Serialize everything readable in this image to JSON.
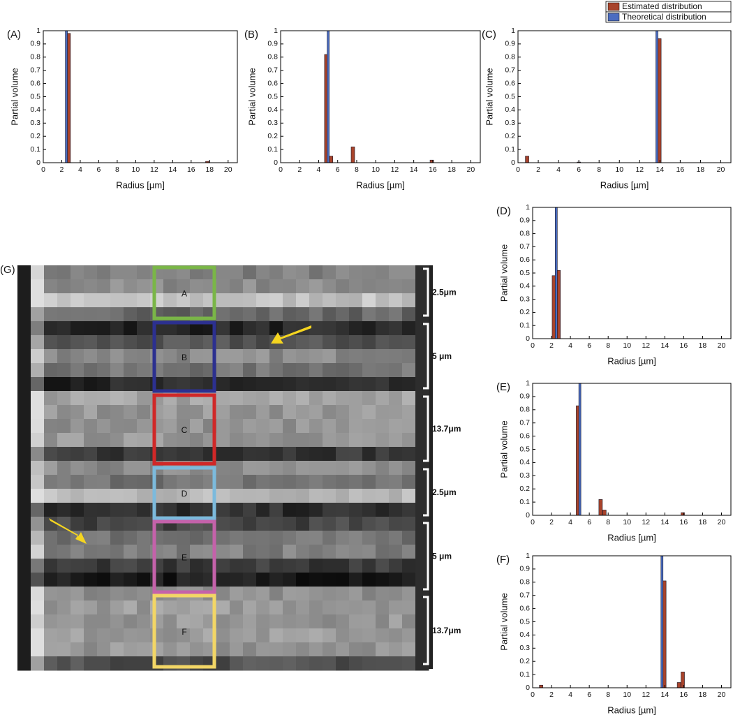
{
  "legend": [
    {
      "name": "Estimated distribution",
      "color": "#a8432b"
    },
    {
      "name": "Theoretical distribution",
      "color": "#4a6cc0"
    }
  ],
  "chart_data": [
    {
      "type": "bar",
      "label": "(A)",
      "xlabel": "Radius [µm]",
      "ylabel": "Partial volume",
      "xlim": [
        0,
        21
      ],
      "ylim": [
        0,
        1
      ],
      "xticks": [
        0,
        2,
        4,
        6,
        8,
        10,
        12,
        14,
        16,
        18,
        20
      ],
      "yticks": [
        0,
        0.1,
        0.2,
        0.3,
        0.4,
        0.5,
        0.6,
        0.7,
        0.8,
        0.9,
        1
      ],
      "series": [
        {
          "x": [
            2.75,
            17.75
          ],
          "values": [
            0.98,
            0.01
          ]
        },
        {
          "x": [
            2.5
          ],
          "values": [
            1
          ]
        }
      ]
    },
    {
      "type": "bar",
      "label": "(B)",
      "xlabel": "Radius [µm]",
      "ylabel": "Partial volume",
      "xlim": [
        0,
        21
      ],
      "ylim": [
        0,
        1
      ],
      "xticks": [
        0,
        2,
        4,
        6,
        8,
        10,
        12,
        14,
        16,
        18,
        20
      ],
      "yticks": [
        0,
        0.1,
        0.2,
        0.3,
        0.4,
        0.5,
        0.6,
        0.7,
        0.8,
        0.9,
        1
      ],
      "series": [
        {
          "x": [
            4.8,
            5.3,
            7.6,
            15.9
          ],
          "values": [
            0.82,
            0.05,
            0.12,
            0.02
          ]
        },
        {
          "x": [
            5
          ],
          "values": [
            1
          ]
        }
      ]
    },
    {
      "type": "bar",
      "label": "(C)",
      "xlabel": "Radius [µm]",
      "ylabel": "Partial volume",
      "xlim": [
        0,
        21
      ],
      "ylim": [
        0,
        1
      ],
      "xticks": [
        0,
        2,
        4,
        6,
        8,
        10,
        12,
        14,
        16,
        18,
        20
      ],
      "yticks": [
        0,
        0.1,
        0.2,
        0.3,
        0.4,
        0.5,
        0.6,
        0.7,
        0.8,
        0.9,
        1
      ],
      "series": [
        {
          "x": [
            0.9,
            6,
            13.95
          ],
          "values": [
            0.05,
            0.005,
            0.94
          ]
        },
        {
          "x": [
            13.7
          ],
          "values": [
            1
          ]
        }
      ]
    },
    {
      "type": "bar",
      "label": "(D)",
      "xlabel": "Radius [µm]",
      "ylabel": "Partial volume",
      "xlim": [
        0,
        21
      ],
      "ylim": [
        0,
        1
      ],
      "xticks": [
        0,
        2,
        4,
        6,
        8,
        10,
        12,
        14,
        16,
        18,
        20
      ],
      "yticks": [
        0,
        0.1,
        0.2,
        0.3,
        0.4,
        0.5,
        0.6,
        0.7,
        0.8,
        0.9,
        1
      ],
      "series": [
        {
          "x": [
            2.25,
            2.75
          ],
          "values": [
            0.48,
            0.52
          ]
        },
        {
          "x": [
            2.5
          ],
          "values": [
            1
          ]
        }
      ]
    },
    {
      "type": "bar",
      "label": "(E)",
      "xlabel": "Radius [µm]",
      "ylabel": "Partial volume",
      "xlim": [
        0,
        21
      ],
      "ylim": [
        0,
        1
      ],
      "xticks": [
        0,
        2,
        4,
        6,
        8,
        10,
        12,
        14,
        16,
        18,
        20
      ],
      "yticks": [
        0,
        0.1,
        0.2,
        0.3,
        0.4,
        0.5,
        0.6,
        0.7,
        0.8,
        0.9,
        1
      ],
      "series": [
        {
          "x": [
            4.8,
            7.2,
            7.6,
            15.9
          ],
          "values": [
            0.83,
            0.12,
            0.04,
            0.02
          ]
        },
        {
          "x": [
            5
          ],
          "values": [
            1
          ]
        }
      ]
    },
    {
      "type": "bar",
      "label": "(F)",
      "xlabel": "Radius [µm]",
      "ylabel": "Partial volume",
      "xlim": [
        0,
        21
      ],
      "ylim": [
        0,
        1
      ],
      "xticks": [
        0,
        2,
        4,
        6,
        8,
        10,
        12,
        14,
        16,
        18,
        20
      ],
      "yticks": [
        0,
        0.1,
        0.2,
        0.3,
        0.4,
        0.5,
        0.6,
        0.7,
        0.8,
        0.9,
        1
      ],
      "series": [
        {
          "x": [
            0.9,
            13.95,
            15.5,
            15.9
          ],
          "values": [
            0.02,
            0.81,
            0.04,
            0.12
          ]
        },
        {
          "x": [
            13.7
          ],
          "values": [
            1
          ]
        }
      ]
    }
  ],
  "image_panel": {
    "label": "(G)",
    "boxes": [
      {
        "label": "A",
        "color": "#7ab648"
      },
      {
        "label": "B",
        "color": "#2c3090"
      },
      {
        "label": "C",
        "color": "#d02828"
      },
      {
        "label": "D",
        "color": "#7cbadc"
      },
      {
        "label": "E",
        "color": "#c462aa"
      },
      {
        "label": "F",
        "color": "#f2d666"
      }
    ],
    "scale_labels": [
      "2.5μm",
      "5 μm",
      "13.7μm",
      "2.5μm",
      "5 μm",
      "13.7μm"
    ]
  }
}
